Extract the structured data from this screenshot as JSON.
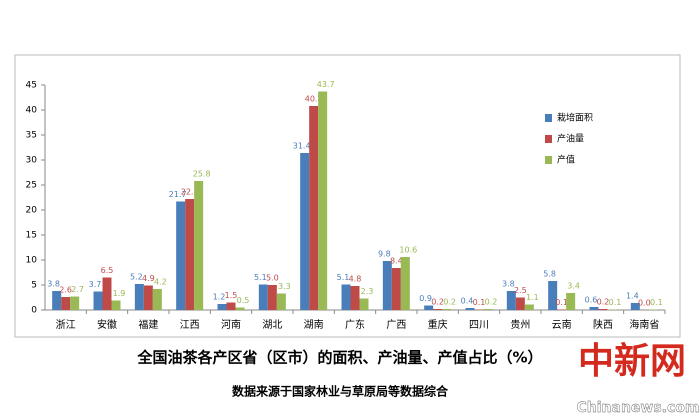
{
  "chart_data": {
    "type": "bar",
    "title": "全国油茶各产区省（区市）的面积、产油量、产值占比（%）",
    "subtitle": "数据来源于国家林业与草原局等数据综合",
    "categories": [
      "浙江",
      "安徽",
      "福建",
      "江西",
      "河南",
      "湖北",
      "湖南",
      "广东",
      "广西",
      "重庆",
      "四川",
      "贵州",
      "云南",
      "陕西",
      "海南省"
    ],
    "series": [
      {
        "name": "栽培面积",
        "color": "#4a7ebb",
        "values": [
          3.8,
          3.7,
          5.2,
          21.7,
          1.2,
          5.1,
          31.4,
          5.1,
          9.8,
          0.9,
          0.4,
          3.8,
          5.8,
          0.6,
          1.4
        ],
        "value_labels": [
          "3.8",
          "3.7",
          "5.2",
          "21.7",
          "1.2",
          "5.1",
          "31.4",
          "5.1",
          "9.8",
          "0.9",
          "0.4",
          "3.8",
          "5.8",
          "0.6",
          "1.4"
        ]
      },
      {
        "name": "产油量",
        "color": "#be4b48",
        "values": [
          2.6,
          6.5,
          4.9,
          22.2,
          1.5,
          5.0,
          40.8,
          4.8,
          8.4,
          0.2,
          0.1,
          2.5,
          0.1,
          0.2,
          0.0
        ],
        "value_labels": [
          "2.6",
          "6.5",
          "4.9",
          "22.2",
          "1.5",
          "5.0",
          "40.8",
          "4.8",
          "8.4",
          "0.2",
          "0.1",
          "2.5",
          "0.1",
          "0.2",
          "0.0"
        ]
      },
      {
        "name": "产值",
        "color": "#98b954",
        "values": [
          2.7,
          1.9,
          4.2,
          25.8,
          0.5,
          3.3,
          43.7,
          2.3,
          10.6,
          0.2,
          0.2,
          1.1,
          3.4,
          0.1,
          0.1
        ],
        "value_labels": [
          "2.7",
          "1.9",
          "4.2",
          "25.8",
          "0.5",
          "3.3",
          "43.7",
          "2.3",
          "10.6",
          "0.2",
          "0.2",
          "1.1",
          "3.4",
          "0.1",
          "0.1"
        ]
      }
    ],
    "ylim": [
      0,
      45
    ],
    "yticks": [
      0,
      5,
      10,
      15,
      20,
      25,
      30,
      35,
      40,
      45
    ],
    "grid": false,
    "legend": "upper-right"
  },
  "watermark": {
    "logo": "中新网",
    "site": "Chinanews.com"
  }
}
